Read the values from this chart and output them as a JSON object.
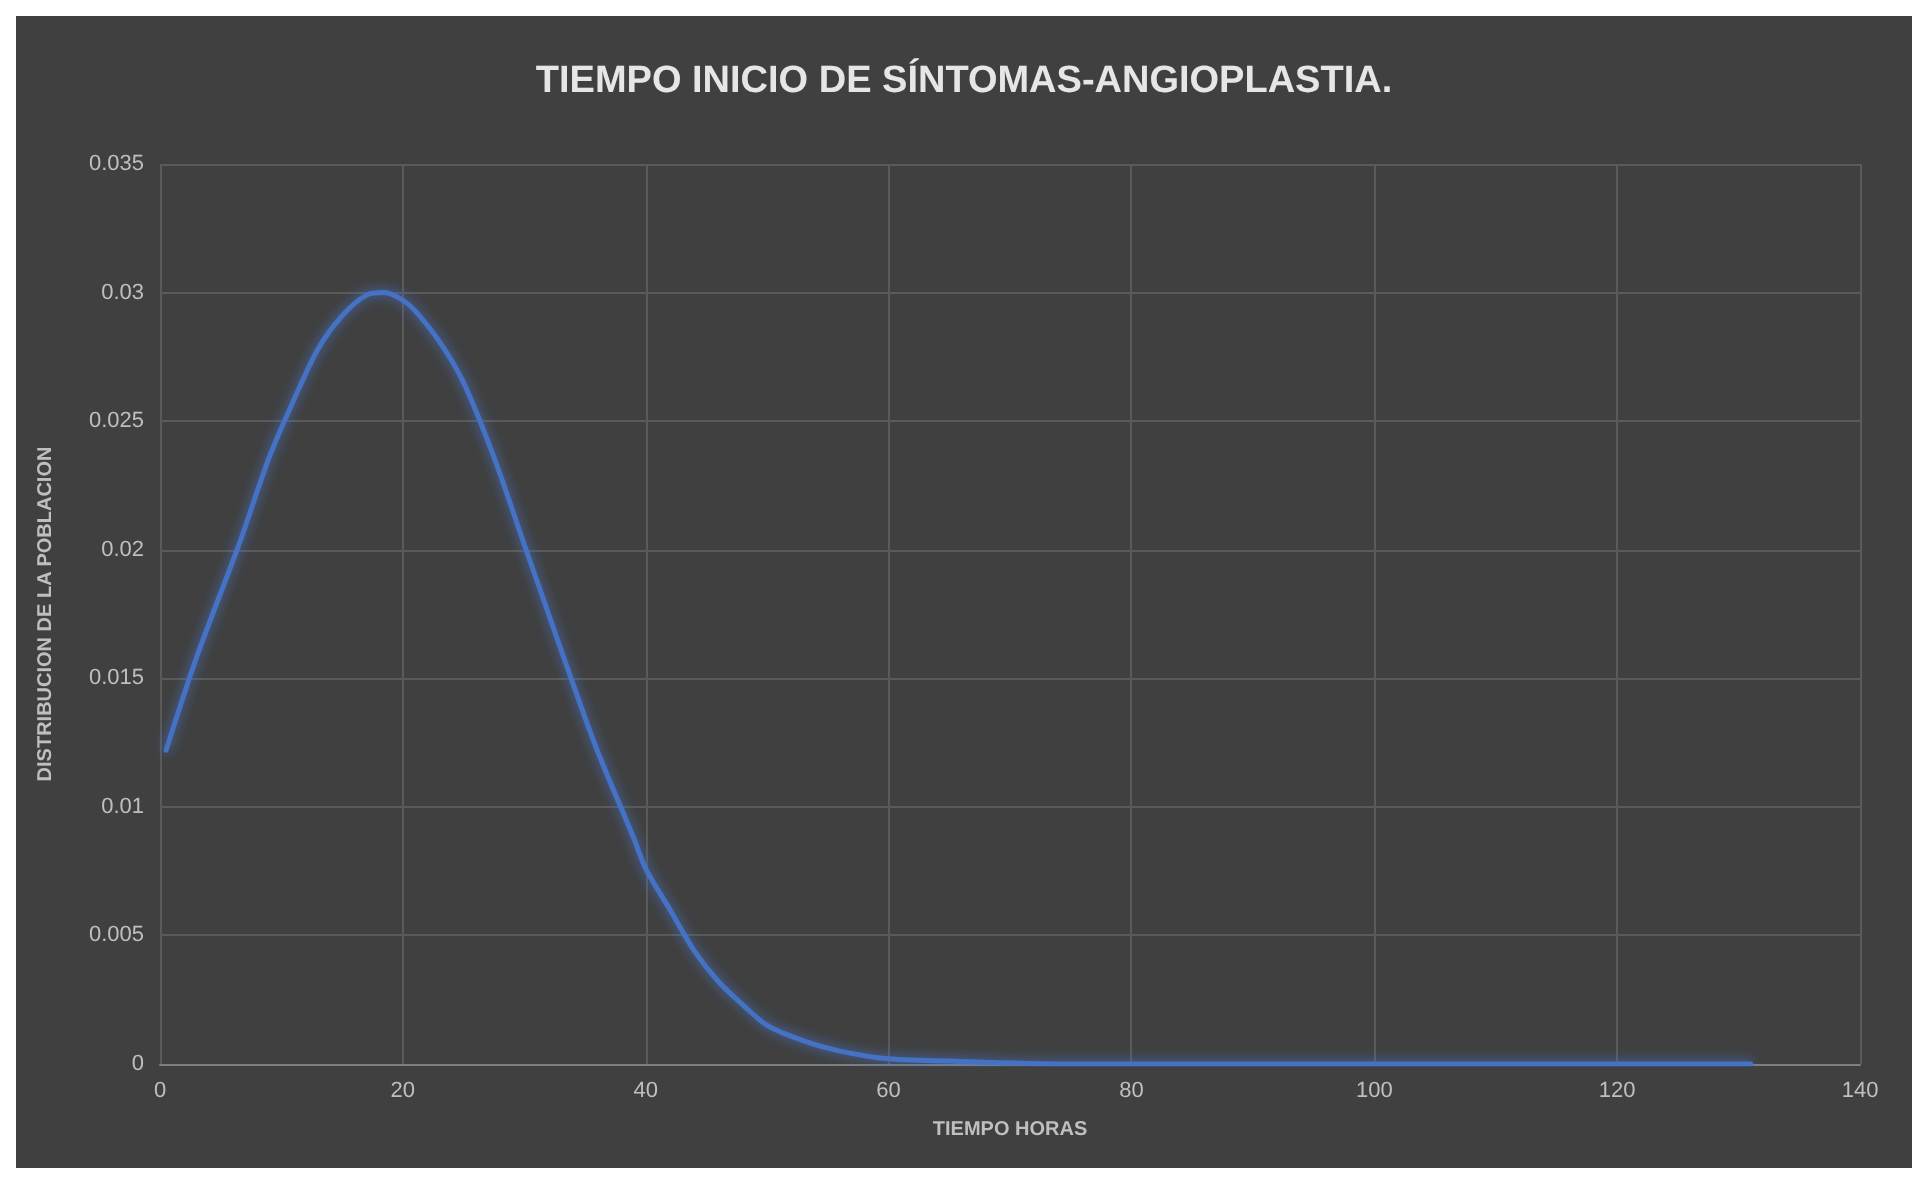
{
  "chart_data": {
    "type": "line",
    "title": "TIEMPO INICIO DE SÍNTOMAS-ANGIOPLASTIA.",
    "xlabel": "TIEMPO HORAS",
    "ylabel": "DISTRIBUCION DE LA POBLACION",
    "x": [
      0.5,
      3,
      6.5,
      9,
      11,
      13,
      15,
      17,
      18.5,
      20,
      21,
      23,
      25,
      27.5,
      30,
      32,
      34,
      36,
      39,
      40,
      42,
      44,
      46,
      48,
      50,
      53,
      56,
      60,
      66,
      75,
      90,
      110,
      131
    ],
    "series": [
      {
        "color": "#4472c4",
        "values": [
          0.0122,
          0.0158,
          0.0202,
          0.0236,
          0.0258,
          0.0278,
          0.0291,
          0.0299,
          0.03,
          0.0297,
          0.0293,
          0.0281,
          0.0265,
          0.0236,
          0.0202,
          0.0175,
          0.0148,
          0.0122,
          0.0088,
          0.0076,
          0.006,
          0.0044,
          0.0032,
          0.0023,
          0.0015,
          0.0009,
          0.0005,
          0.0002,
          0.0001,
          0,
          0,
          0,
          0
        ]
      }
    ],
    "xlim": [
      0,
      140
    ],
    "xticks": [
      0,
      20,
      40,
      60,
      80,
      100,
      120,
      140
    ],
    "ylim": [
      0,
      0.035
    ],
    "yticks": [
      0,
      0.005,
      0.01,
      0.015,
      0.02,
      0.025,
      0.03,
      0.035
    ],
    "grid": true,
    "marker": "none",
    "line_style": "solid"
  }
}
